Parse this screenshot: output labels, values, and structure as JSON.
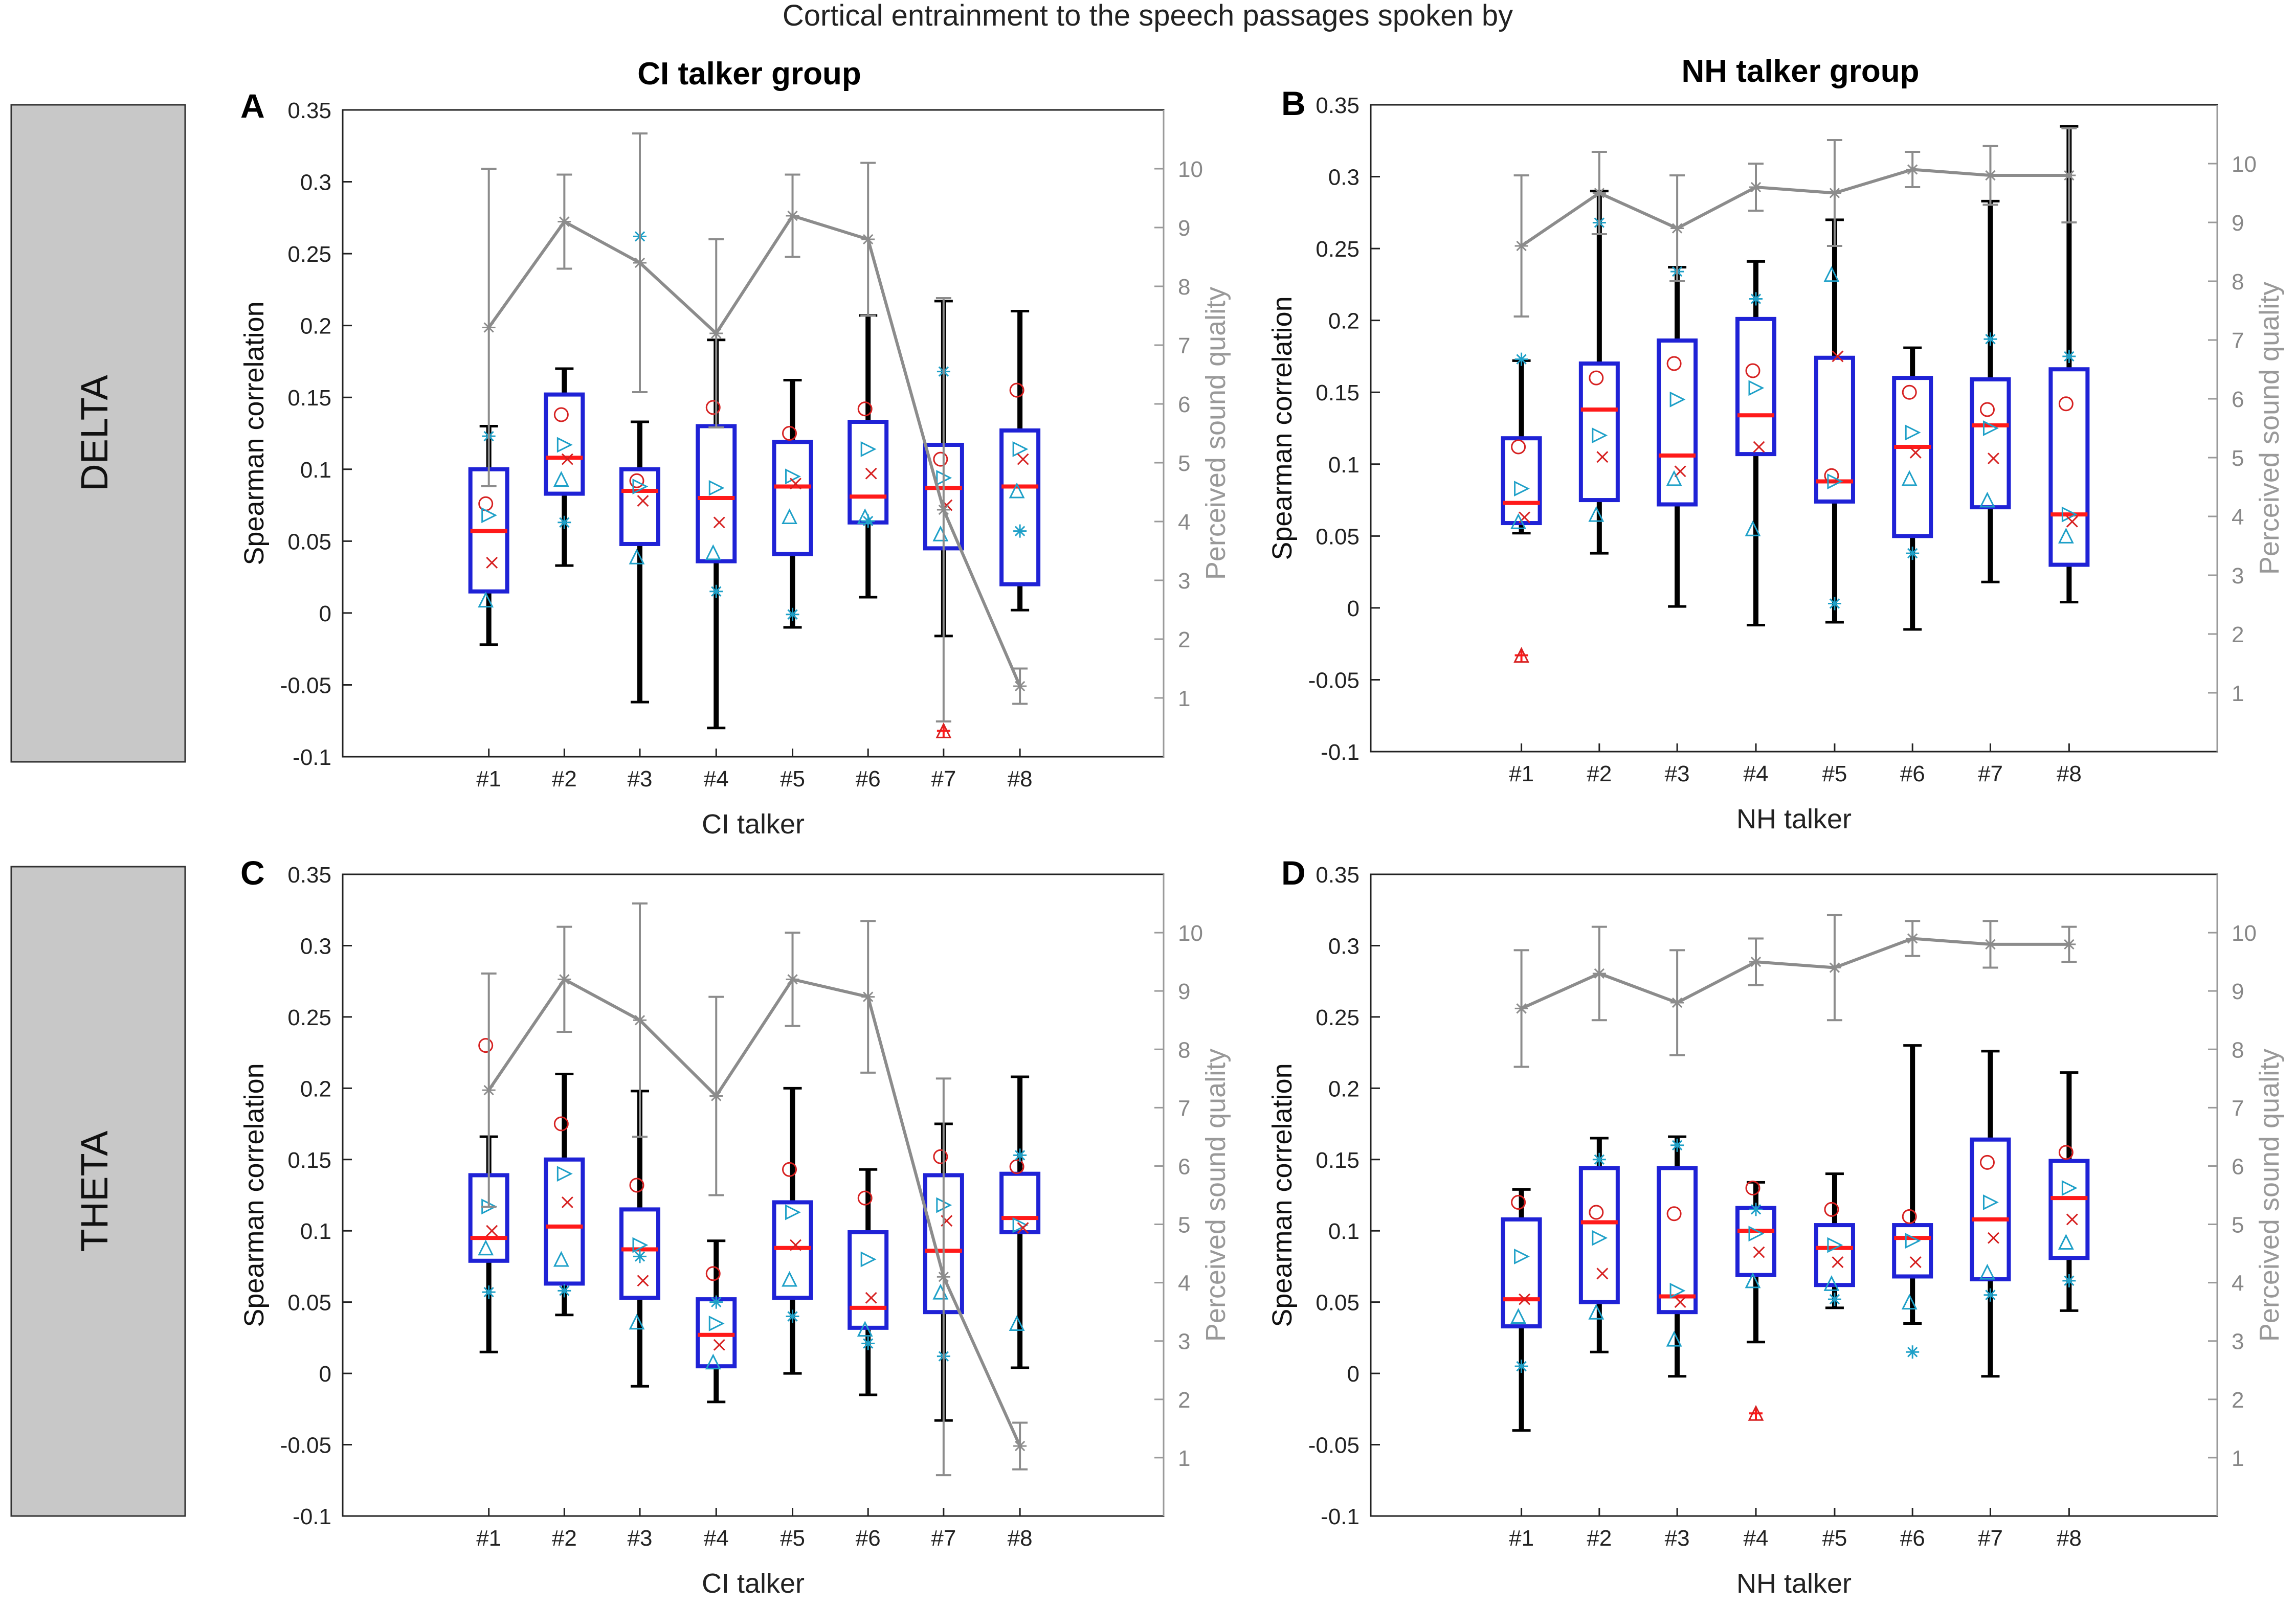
{
  "figure": {
    "title": "Cortical entrainment to the speech passages spoken by",
    "row_labels": [
      "DELTA",
      "THETA"
    ],
    "column_titles": [
      "CI talker group",
      "NH talker group"
    ]
  },
  "colors": {
    "box": "#1f22d6",
    "median": "#ff1a1a",
    "whisker": "#000000",
    "quality": "#8c8c8c",
    "quality_axis": "#9a9a9a",
    "markers_a": "#1ea0c8",
    "markers_b": "#d62020",
    "markers_c": "#2a2ad0",
    "row_label_bg": "#c8c8c8"
  },
  "chart_data": [
    {
      "panel": "A",
      "type": "box",
      "title": "CI talker group",
      "xlabel": "CI talker",
      "ylabel": "Spearman correlation",
      "y2label": "Perceived sound quality",
      "categories": [
        "#1",
        "#2",
        "#3",
        "#4",
        "#5",
        "#6",
        "#7",
        "#8"
      ],
      "ylim": [
        -0.1,
        0.35
      ],
      "y2lim": [
        0,
        11
      ],
      "yticks": [
        "-0.1",
        "-0.05",
        "0",
        "0.05",
        "0.1",
        "0.15",
        "0.2",
        "0.25",
        "0.3",
        "0.35"
      ],
      "y2ticks": [
        "1",
        "2",
        "3",
        "4",
        "5",
        "6",
        "7",
        "8",
        "9",
        "10"
      ],
      "boxes": [
        {
          "min": -0.022,
          "q1": 0.015,
          "median": 0.057,
          "q3": 0.1,
          "max": 0.13
        },
        {
          "min": 0.033,
          "q1": 0.083,
          "median": 0.108,
          "q3": 0.152,
          "max": 0.17
        },
        {
          "min": -0.062,
          "q1": 0.048,
          "median": 0.085,
          "q3": 0.1,
          "max": 0.133
        },
        {
          "min": -0.08,
          "q1": 0.036,
          "median": 0.08,
          "q3": 0.13,
          "max": 0.19
        },
        {
          "min": -0.01,
          "q1": 0.041,
          "median": 0.088,
          "q3": 0.119,
          "max": 0.162
        },
        {
          "min": 0.011,
          "q1": 0.063,
          "median": 0.081,
          "q3": 0.133,
          "max": 0.207
        },
        {
          "min": -0.016,
          "q1": 0.045,
          "median": 0.087,
          "q3": 0.117,
          "max": 0.217
        },
        {
          "min": 0.002,
          "q1": 0.02,
          "median": 0.088,
          "q3": 0.127,
          "max": 0.21
        }
      ],
      "outliers": [
        {
          "category": "#7",
          "value": -0.082
        }
      ],
      "points": [
        [
          0.076,
          0.068,
          0.035,
          0.009,
          0.123
        ],
        [
          0.138,
          0.117,
          0.107,
          0.093,
          0.063
        ],
        [
          0.092,
          0.088,
          0.078,
          0.039,
          0.262
        ],
        [
          0.143,
          0.087,
          0.063,
          0.042,
          0.015
        ],
        [
          0.125,
          0.095,
          0.09,
          0.067,
          -0.001
        ],
        [
          0.142,
          0.114,
          0.097,
          0.067,
          0.064
        ],
        [
          0.107,
          0.094,
          0.075,
          0.055,
          0.168
        ],
        [
          0.155,
          0.114,
          0.107,
          0.085,
          0.057
        ]
      ],
      "quality": {
        "mean": [
          7.3,
          9.1,
          8.4,
          7.2,
          9.2,
          8.8,
          4.2,
          1.2
        ],
        "err": [
          2.7,
          0.8,
          2.2,
          1.6,
          0.7,
          1.3,
          3.6,
          0.3
        ]
      }
    },
    {
      "panel": "B",
      "type": "box",
      "title": "NH talker group",
      "xlabel": "NH talker",
      "ylabel": "Spearman correlation",
      "y2label": "Perceived sound quality",
      "categories": [
        "#1",
        "#2",
        "#3",
        "#4",
        "#5",
        "#6",
        "#7",
        "#8"
      ],
      "ylim": [
        -0.1,
        0.35
      ],
      "y2lim": [
        0,
        11
      ],
      "yticks": [
        "-0.1",
        "-0.05",
        "0",
        "0.05",
        "0.1",
        "0.15",
        "0.2",
        "0.25",
        "0.3",
        "0.35"
      ],
      "y2ticks": [
        "1",
        "2",
        "3",
        "4",
        "5",
        "6",
        "7",
        "8",
        "9",
        "10"
      ],
      "boxes": [
        {
          "min": 0.052,
          "q1": 0.059,
          "median": 0.073,
          "q3": 0.118,
          "max": 0.172
        },
        {
          "min": 0.038,
          "q1": 0.075,
          "median": 0.138,
          "q3": 0.17,
          "max": 0.29
        },
        {
          "min": 0.001,
          "q1": 0.072,
          "median": 0.106,
          "q3": 0.186,
          "max": 0.237
        },
        {
          "min": -0.012,
          "q1": 0.107,
          "median": 0.134,
          "q3": 0.201,
          "max": 0.241
        },
        {
          "min": -0.01,
          "q1": 0.074,
          "median": 0.088,
          "q3": 0.174,
          "max": 0.27
        },
        {
          "min": -0.015,
          "q1": 0.05,
          "median": 0.112,
          "q3": 0.16,
          "max": 0.181
        },
        {
          "min": 0.018,
          "q1": 0.07,
          "median": 0.127,
          "q3": 0.159,
          "max": 0.283
        },
        {
          "min": 0.004,
          "q1": 0.03,
          "median": 0.065,
          "q3": 0.166,
          "max": 0.335
        }
      ],
      "outliers": [
        {
          "category": "#1",
          "value": -0.033
        }
      ],
      "points": [
        [
          0.112,
          0.083,
          0.063,
          0.06,
          0.173
        ],
        [
          0.16,
          0.12,
          0.105,
          0.065,
          0.268
        ],
        [
          0.17,
          0.145,
          0.095,
          0.09,
          0.234
        ],
        [
          0.165,
          0.153,
          0.112,
          0.055,
          0.215
        ],
        [
          0.092,
          0.088,
          0.175,
          0.232,
          0.003
        ],
        [
          0.15,
          0.122,
          0.108,
          0.09,
          0.038
        ],
        [
          0.138,
          0.125,
          0.104,
          0.075,
          0.187
        ],
        [
          0.142,
          0.065,
          0.06,
          0.05,
          0.175
        ]
      ],
      "quality": {
        "mean": [
          8.6,
          9.5,
          8.9,
          9.6,
          9.5,
          9.9,
          9.8,
          9.8
        ],
        "err": [
          1.2,
          0.7,
          0.9,
          0.4,
          0.9,
          0.3,
          0.5,
          0.8
        ]
      }
    },
    {
      "panel": "C",
      "type": "box",
      "title": "",
      "xlabel": "CI talker",
      "ylabel": "Spearman correlation",
      "y2label": "Perceived sound quality",
      "categories": [
        "#1",
        "#2",
        "#3",
        "#4",
        "#5",
        "#6",
        "#7",
        "#8"
      ],
      "ylim": [
        -0.1,
        0.35
      ],
      "y2lim": [
        0,
        11
      ],
      "yticks": [
        "-0.1",
        "-0.05",
        "0",
        "0.05",
        "0.1",
        "0.15",
        "0.2",
        "0.25",
        "0.3",
        "0.35"
      ],
      "y2ticks": [
        "1",
        "2",
        "3",
        "4",
        "5",
        "6",
        "7",
        "8",
        "9",
        "10"
      ],
      "boxes": [
        {
          "min": 0.015,
          "q1": 0.079,
          "median": 0.095,
          "q3": 0.139,
          "max": 0.166
        },
        {
          "min": 0.041,
          "q1": 0.063,
          "median": 0.103,
          "q3": 0.15,
          "max": 0.21
        },
        {
          "min": -0.009,
          "q1": 0.053,
          "median": 0.087,
          "q3": 0.115,
          "max": 0.198
        },
        {
          "min": -0.02,
          "q1": 0.005,
          "median": 0.027,
          "q3": 0.052,
          "max": 0.093
        },
        {
          "min": 0.0,
          "q1": 0.053,
          "median": 0.088,
          "q3": 0.12,
          "max": 0.2
        },
        {
          "min": -0.015,
          "q1": 0.032,
          "median": 0.046,
          "q3": 0.099,
          "max": 0.143
        },
        {
          "min": -0.033,
          "q1": 0.043,
          "median": 0.086,
          "q3": 0.139,
          "max": 0.175
        },
        {
          "min": 0.004,
          "q1": 0.099,
          "median": 0.109,
          "q3": 0.14,
          "max": 0.208
        }
      ],
      "outliers": [],
      "points": [
        [
          0.23,
          0.117,
          0.1,
          0.088,
          0.057
        ],
        [
          0.175,
          0.14,
          0.12,
          0.08,
          0.058
        ],
        [
          0.132,
          0.09,
          0.065,
          0.036,
          0.082
        ],
        [
          0.07,
          0.035,
          0.02,
          0.008,
          0.05
        ],
        [
          0.143,
          0.113,
          0.09,
          0.066,
          0.04
        ],
        [
          0.123,
          0.08,
          0.053,
          0.031,
          0.021
        ],
        [
          0.152,
          0.118,
          0.107,
          0.057,
          0.012
        ],
        [
          0.145,
          0.104,
          0.102,
          0.035,
          0.153
        ]
      ],
      "quality": {
        "mean": [
          7.3,
          9.2,
          8.5,
          7.2,
          9.2,
          8.9,
          4.1,
          1.2
        ],
        "err": [
          2.0,
          0.9,
          2.0,
          1.7,
          0.8,
          1.3,
          3.4,
          0.4
        ]
      }
    },
    {
      "panel": "D",
      "type": "box",
      "title": "",
      "xlabel": "NH talker",
      "ylabel": "Spearman correlation",
      "y2label": "Perceived sound quality",
      "categories": [
        "#1",
        "#2",
        "#3",
        "#4",
        "#5",
        "#6",
        "#7",
        "#8"
      ],
      "ylim": [
        -0.1,
        0.35
      ],
      "y2lim": [
        0,
        11
      ],
      "yticks": [
        "-0.1",
        "-0.05",
        "0",
        "0.05",
        "0.1",
        "0.15",
        "0.2",
        "0.25",
        "0.3",
        "0.35"
      ],
      "y2ticks": [
        "1",
        "2",
        "3",
        "4",
        "5",
        "6",
        "7",
        "8",
        "9",
        "10"
      ],
      "boxes": [
        {
          "min": -0.04,
          "q1": 0.033,
          "median": 0.052,
          "q3": 0.108,
          "max": 0.129
        },
        {
          "min": 0.015,
          "q1": 0.05,
          "median": 0.106,
          "q3": 0.144,
          "max": 0.165
        },
        {
          "min": -0.002,
          "q1": 0.043,
          "median": 0.054,
          "q3": 0.144,
          "max": 0.166
        },
        {
          "min": 0.022,
          "q1": 0.069,
          "median": 0.1,
          "q3": 0.116,
          "max": 0.134
        },
        {
          "min": 0.046,
          "q1": 0.062,
          "median": 0.088,
          "q3": 0.104,
          "max": 0.14
        },
        {
          "min": 0.035,
          "q1": 0.068,
          "median": 0.095,
          "q3": 0.104,
          "max": 0.23
        },
        {
          "min": -0.002,
          "q1": 0.066,
          "median": 0.108,
          "q3": 0.164,
          "max": 0.226
        },
        {
          "min": 0.044,
          "q1": 0.081,
          "median": 0.123,
          "q3": 0.149,
          "max": 0.211
        }
      ],
      "outliers": [
        {
          "category": "#4",
          "value": -0.028
        }
      ],
      "points": [
        [
          0.12,
          0.082,
          0.052,
          0.04,
          0.005
        ],
        [
          0.113,
          0.095,
          0.07,
          0.043,
          0.15
        ],
        [
          0.112,
          0.058,
          0.05,
          0.024,
          0.16
        ],
        [
          0.13,
          0.098,
          0.085,
          0.065,
          0.115
        ],
        [
          0.115,
          0.09,
          0.078,
          0.063,
          0.052
        ],
        [
          0.11,
          0.093,
          0.078,
          0.05,
          0.015
        ],
        [
          0.148,
          0.12,
          0.095,
          0.071,
          0.055
        ],
        [
          0.155,
          0.13,
          0.108,
          0.092,
          0.065
        ]
      ],
      "quality": {
        "mean": [
          8.7,
          9.3,
          8.8,
          9.5,
          9.4,
          9.9,
          9.8,
          9.8
        ],
        "err": [
          1.0,
          0.8,
          0.9,
          0.4,
          0.9,
          0.3,
          0.4,
          0.3
        ]
      }
    }
  ]
}
